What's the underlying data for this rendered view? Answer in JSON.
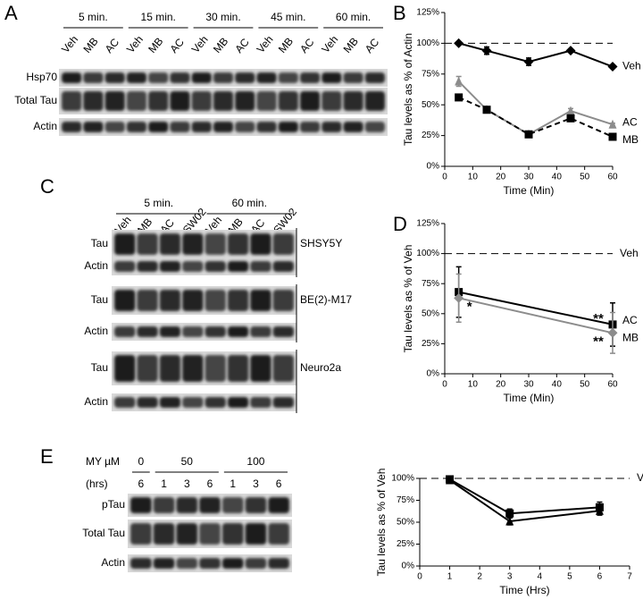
{
  "blots": [
    {
      "panel": "A",
      "rotate_lanes": true,
      "groups": [
        {
          "label": "5 min.",
          "lanes": [
            "Veh",
            "MB",
            "AC"
          ]
        },
        {
          "label": "15 min.",
          "lanes": [
            "Veh",
            "MB",
            "AC"
          ]
        },
        {
          "label": "30 min.",
          "lanes": [
            "Veh",
            "MB",
            "AC"
          ]
        },
        {
          "label": "45 min.",
          "lanes": [
            "Veh",
            "MB",
            "AC"
          ]
        },
        {
          "label": "60 min.",
          "lanes": [
            "Veh",
            "MB",
            "AC"
          ]
        }
      ],
      "sections": [
        {
          "rows": [
            "Hsp70",
            "Total Tau",
            "Actin"
          ]
        }
      ]
    },
    {
      "panel": "C",
      "rotate_lanes": true,
      "groups": [
        {
          "label": "5 min.",
          "lanes": [
            "Veh",
            "MB",
            "AC",
            "SW02"
          ]
        },
        {
          "label": "60 min.",
          "lanes": [
            "Veh",
            "MB",
            "AC",
            "SW02"
          ]
        }
      ],
      "sections": [
        {
          "name": "SHSY5Y",
          "rows": [
            "Tau",
            "Actin"
          ]
        },
        {
          "name": "BE(2)-M17",
          "rows": [
            "Tau",
            "Actin"
          ]
        },
        {
          "name": "Neuro2a",
          "rows": [
            "Tau",
            "Actin"
          ]
        }
      ]
    },
    {
      "panel": "E",
      "rotate_lanes": false,
      "group_header": "MY µM",
      "lane_header": "(hrs)",
      "groups": [
        {
          "label": "0",
          "lanes": [
            "6"
          ]
        },
        {
          "label": "50",
          "lanes": [
            "1",
            "3",
            "6"
          ]
        },
        {
          "label": "100",
          "lanes": [
            "1",
            "3",
            "6"
          ]
        }
      ],
      "sections": [
        {
          "rows": [
            "pTau",
            "Total Tau",
            "Actin"
          ]
        }
      ]
    }
  ],
  "chart_data": [
    {
      "type": "line",
      "panel": "B",
      "y_label": "Tau levels as % of Actin",
      "x_label": "Time (Min)",
      "x": [
        5,
        15,
        30,
        45,
        60
      ],
      "xlim": [
        0,
        60
      ],
      "xticks": [
        0,
        10,
        20,
        30,
        40,
        50,
        60
      ],
      "ylim": [
        0,
        125
      ],
      "yticks": [
        {
          "value": 0,
          "label": "0%"
        },
        {
          "value": 25,
          "label": "25%"
        },
        {
          "value": 50,
          "label": "50%"
        },
        {
          "value": 75,
          "label": "75%"
        },
        {
          "value": 100,
          "label": "100%"
        },
        {
          "value": 125,
          "label": "125%"
        }
      ],
      "reference_line": 100,
      "series": [
        {
          "name": "Veh",
          "color": "#000000",
          "marker": "diamond",
          "dash": false,
          "values": [
            100,
            94,
            85,
            94,
            81
          ],
          "errors": [
            1,
            3,
            3,
            1,
            1
          ]
        },
        {
          "name": "AC",
          "color": "#8c8c8c",
          "marker": "triangle",
          "dash": false,
          "values": [
            69,
            46,
            26,
            45,
            34
          ],
          "errors": [
            4,
            1,
            1,
            2,
            1
          ]
        },
        {
          "name": "MB",
          "color": "#000000",
          "marker": "square",
          "dash": true,
          "values": [
            56,
            46,
            26,
            39,
            24
          ],
          "errors": [
            1,
            1,
            1,
            2,
            1
          ]
        }
      ]
    },
    {
      "type": "line",
      "panel": "D",
      "y_label": "Tau levels as % of Veh",
      "x_label": "Time (Min)",
      "x": [
        5,
        60
      ],
      "xlim": [
        0,
        60
      ],
      "xticks": [
        0,
        10,
        20,
        30,
        40,
        50,
        60
      ],
      "ylim": [
        0,
        125
      ],
      "yticks": [
        {
          "value": 0,
          "label": "0%"
        },
        {
          "value": 25,
          "label": "25%"
        },
        {
          "value": 50,
          "label": "50%"
        },
        {
          "value": 75,
          "label": "75%"
        },
        {
          "value": 100,
          "label": "100%"
        },
        {
          "value": 125,
          "label": "125%"
        }
      ],
      "reference_line": {
        "value": 100,
        "label": "Veh"
      },
      "series": [
        {
          "name": "AC",
          "color": "#000000",
          "marker": "square",
          "dash": false,
          "values": [
            68,
            41
          ],
          "errors": [
            21,
            18
          ]
        },
        {
          "name": "MB",
          "color": "#8c8c8c",
          "marker": "diamond",
          "dash": false,
          "values": [
            63,
            34
          ],
          "errors": [
            20,
            17
          ]
        }
      ],
      "annotations": [
        {
          "text": "*",
          "series": 1,
          "point": 0
        },
        {
          "text": "**",
          "series": 0,
          "point": 1
        },
        {
          "text": "**",
          "series": 1,
          "point": 1
        }
      ]
    },
    {
      "type": "line",
      "y_label": "Tau levels as % of Veh",
      "x_label": "Time (Hrs)",
      "x": [
        1,
        3,
        6
      ],
      "xlim": [
        0,
        7
      ],
      "xticks": [
        0,
        1,
        2,
        3,
        4,
        5,
        6,
        7
      ],
      "ylim": [
        0,
        100
      ],
      "yticks": [
        {
          "value": 0,
          "label": "0%"
        },
        {
          "value": 25,
          "label": "25%"
        },
        {
          "value": 50,
          "label": "50%"
        },
        {
          "value": 75,
          "label": "75%"
        },
        {
          "value": 100,
          "label": "100%"
        }
      ],
      "reference_line": {
        "value": 100,
        "label": "Veh"
      },
      "series": [
        {
          "color": "#000000",
          "marker": "square",
          "dash": false,
          "values": [
            99,
            60,
            67
          ],
          "errors": [
            3,
            5,
            6
          ]
        },
        {
          "color": "#000000",
          "marker": "triangle",
          "dash": false,
          "values": [
            98,
            51,
            63
          ],
          "errors": [
            3,
            4,
            5
          ]
        }
      ]
    }
  ]
}
